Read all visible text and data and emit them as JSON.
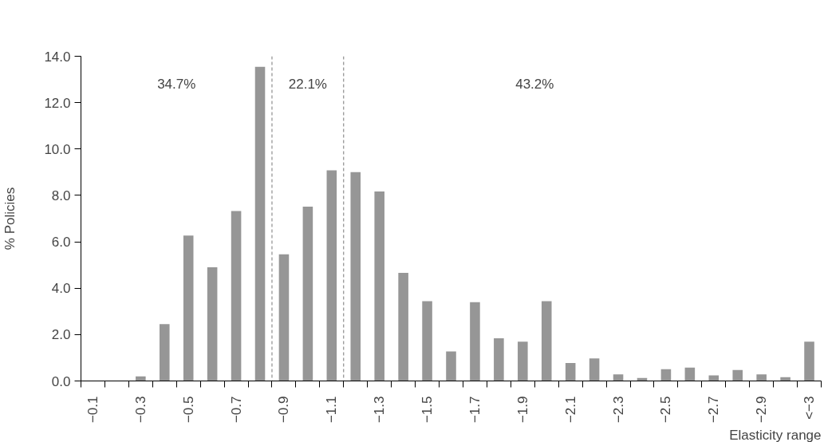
{
  "chart_data": {
    "type": "bar",
    "xlabel": "Elasticity range",
    "ylabel": "% Policies",
    "categories": [
      "−0.1",
      null,
      "−0.3",
      null,
      "−0.5",
      null,
      "−0.7",
      null,
      "−0.9",
      null,
      "−1.1",
      null,
      "−1.3",
      null,
      "−1.5",
      null,
      "−1.7",
      null,
      "−1.9",
      null,
      "−2.1",
      null,
      "−2.3",
      null,
      "−2.5",
      null,
      "−2.7",
      null,
      "−2.9",
      null,
      "<−3"
    ],
    "values": [
      0,
      0,
      0.2,
      2.45,
      6.27,
      4.9,
      7.33,
      13.54,
      5.46,
      7.52,
      9.08,
      9.0,
      8.17,
      4.66,
      3.44,
      1.27,
      3.4,
      1.84,
      1.69,
      3.44,
      0.77,
      0.97,
      0.28,
      0.13,
      0.51,
      0.58,
      0.24,
      0.47,
      0.28,
      0.16,
      1.69
    ],
    "color": "#969696",
    "ylim": [
      0,
      14
    ],
    "yticks": [
      {
        "value": 0,
        "label": "0.0"
      },
      {
        "value": 2,
        "label": "2.0"
      },
      {
        "value": 4,
        "label": "4.0"
      },
      {
        "value": 6,
        "label": "6.0"
      },
      {
        "value": 8,
        "label": "8.0"
      },
      {
        "value": 10,
        "label": "10.0"
      },
      {
        "value": 12,
        "label": "12.0"
      },
      {
        "value": 14,
        "label": "14.0"
      }
    ],
    "annotations": [
      "34.7%",
      "22.1%",
      "43.2%"
    ]
  }
}
